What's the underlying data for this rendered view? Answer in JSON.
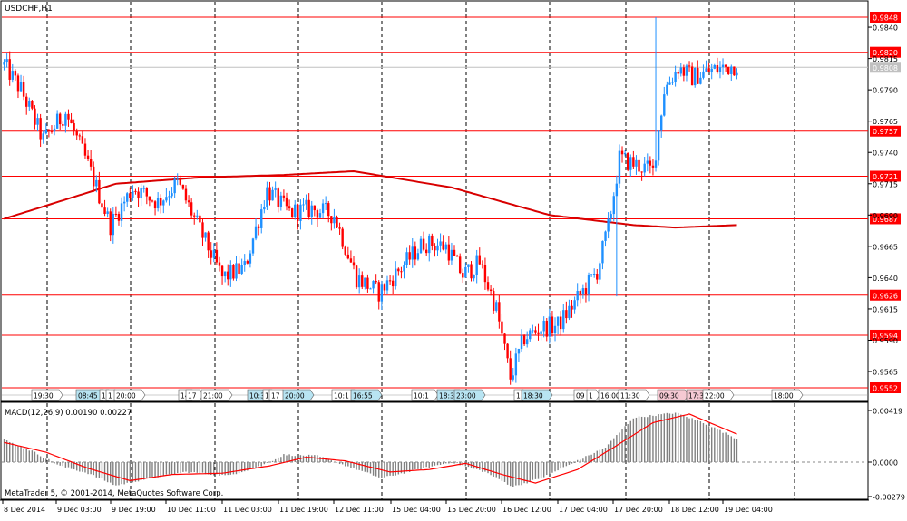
{
  "window": {
    "symbol_title": "USDCHF,H1",
    "copyright": "MetaTrader 5, © 2001-2014, MetaQuotes Software Corp."
  },
  "main_axis": {
    "ticks": [
      "0.9840",
      "0.9815",
      "0.9790",
      "0.9765",
      "0.9740",
      "0.9715",
      "0.9690",
      "0.9665",
      "0.9640",
      "0.9615",
      "0.9590",
      "0.9565"
    ],
    "current_price": "0.9808"
  },
  "levels": [
    {
      "label": "0.9848"
    },
    {
      "label": "0.9820"
    },
    {
      "label": "0.9757"
    },
    {
      "label": "0.9721"
    },
    {
      "label": "0.9687"
    },
    {
      "label": "0.9626"
    },
    {
      "label": "0.9594"
    },
    {
      "label": "0.9552"
    }
  ],
  "events_bar": {
    "time_labels": [
      {
        "text": "19:30",
        "style": "plain"
      },
      {
        "text": "08:45",
        "style": "blue"
      },
      {
        "text": "1",
        "style": "plain"
      },
      {
        "text": "1",
        "style": "plain"
      },
      {
        "text": "20:00",
        "style": "plain"
      },
      {
        "text": "14",
        "style": "plain"
      },
      {
        "text": "17",
        "style": "plain"
      },
      {
        "text": "21:00",
        "style": "plain"
      },
      {
        "text": "10:3",
        "style": "blue"
      },
      {
        "text": "1",
        "style": "plain"
      },
      {
        "text": "17",
        "style": "plain"
      },
      {
        "text": "20:00",
        "style": "blue"
      },
      {
        "text": "10:1",
        "style": "plain"
      },
      {
        "text": "16:55",
        "style": "blue"
      },
      {
        "text": "10:1",
        "style": "plain"
      },
      {
        "text": "18:3",
        "style": "blue"
      },
      {
        "text": "23:00",
        "style": "blue"
      },
      {
        "text": "1",
        "style": "plain"
      },
      {
        "text": "18:30",
        "style": "blue"
      },
      {
        "text": "09",
        "style": "plain"
      },
      {
        "text": "1",
        "style": "plain"
      },
      {
        "text": "16:00",
        "style": "plain"
      },
      {
        "text": "11:30",
        "style": "plain"
      },
      {
        "text": "09:30",
        "style": "pink"
      },
      {
        "text": "17:3",
        "style": "pink"
      },
      {
        "text": "22:00",
        "style": "plain"
      },
      {
        "text": "18:00",
        "style": "plain"
      }
    ]
  },
  "macd": {
    "label": "MACD(12,26,9) 0.00190 0.00227",
    "ticks": [
      "0.00419",
      "0.0000",
      "-0.00279"
    ]
  },
  "time_axis": {
    "labels": [
      "8 Dec 2014",
      "9 Dec 03:00",
      "9 Dec 19:00",
      "10 Dec 11:00",
      "11 Dec 03:00",
      "11 Dec 19:00",
      "12 Dec 11:00",
      "15 Dec 04:00",
      "15 Dec 20:00",
      "16 Dec 12:00",
      "17 Dec 04:00",
      "17 Dec 20:00",
      "18 Dec 12:00",
      "19 Dec 04:00"
    ]
  },
  "colors": {
    "bull": "#1e90ff",
    "bear": "#ff0000",
    "level_line": "#ff0000",
    "ma_line": "#d80000",
    "macd_hist": "#808080",
    "macd_signal": "#ff0000",
    "grid": "#000000",
    "current_price_line": "#c0c0c0"
  },
  "chart_data": {
    "type": "candlestick",
    "title": "USDCHF,H1",
    "ylim": [
      0.9545,
      0.9862
    ],
    "key_points": [
      {
        "i": 0,
        "p": 0.981
      },
      {
        "i": 6,
        "p": 0.979
      },
      {
        "i": 14,
        "p": 0.975
      },
      {
        "i": 22,
        "p": 0.9772
      },
      {
        "i": 30,
        "p": 0.973
      },
      {
        "i": 38,
        "p": 0.9682
      },
      {
        "i": 46,
        "p": 0.9712
      },
      {
        "i": 55,
        "p": 0.97
      },
      {
        "i": 62,
        "p": 0.9716
      },
      {
        "i": 70,
        "p": 0.9678
      },
      {
        "i": 78,
        "p": 0.964
      },
      {
        "i": 86,
        "p": 0.9648
      },
      {
        "i": 94,
        "p": 0.971
      },
      {
        "i": 102,
        "p": 0.9692
      },
      {
        "i": 110,
        "p": 0.9695
      },
      {
        "i": 118,
        "p": 0.969
      },
      {
        "i": 126,
        "p": 0.964
      },
      {
        "i": 134,
        "p": 0.9628
      },
      {
        "i": 142,
        "p": 0.9648
      },
      {
        "i": 150,
        "p": 0.9668
      },
      {
        "i": 158,
        "p": 0.9665
      },
      {
        "i": 164,
        "p": 0.9642
      },
      {
        "i": 170,
        "p": 0.9652
      },
      {
        "i": 176,
        "p": 0.9615
      },
      {
        "i": 181,
        "p": 0.956
      },
      {
        "i": 186,
        "p": 0.9592
      },
      {
        "i": 192,
        "p": 0.96
      },
      {
        "i": 198,
        "p": 0.9602
      },
      {
        "i": 204,
        "p": 0.962
      },
      {
        "i": 212,
        "p": 0.9645
      },
      {
        "i": 216,
        "p": 0.968
      },
      {
        "i": 220,
        "p": 0.9735
      },
      {
        "i": 226,
        "p": 0.973
      },
      {
        "i": 232,
        "p": 0.9725
      },
      {
        "i": 236,
        "p": 0.979
      },
      {
        "i": 241,
        "p": 0.9808
      },
      {
        "i": 246,
        "p": 0.98
      },
      {
        "i": 252,
        "p": 0.9805
      },
      {
        "i": 258,
        "p": 0.9808
      },
      {
        "i": 262,
        "p": 0.981
      }
    ],
    "spikes": [
      {
        "i": 219,
        "low": 0.9625
      },
      {
        "i": 233,
        "high": 0.9848
      }
    ],
    "moving_average": [
      {
        "i": 0,
        "p": 0.9687
      },
      {
        "i": 40,
        "p": 0.9715
      },
      {
        "i": 70,
        "p": 0.972
      },
      {
        "i": 100,
        "p": 0.9722
      },
      {
        "i": 125,
        "p": 0.9725
      },
      {
        "i": 160,
        "p": 0.9712
      },
      {
        "i": 195,
        "p": 0.969
      },
      {
        "i": 225,
        "p": 0.9682
      },
      {
        "i": 240,
        "p": 0.968
      },
      {
        "i": 262,
        "p": 0.9682
      }
    ],
    "macd_hist_points": [
      {
        "i": 0,
        "v": 0.0018
      },
      {
        "i": 10,
        "v": 0.0009
      },
      {
        "i": 20,
        "v": -0.0003
      },
      {
        "i": 30,
        "v": -0.0009
      },
      {
        "i": 40,
        "v": -0.0019
      },
      {
        "i": 52,
        "v": -0.0013
      },
      {
        "i": 65,
        "v": -0.0008
      },
      {
        "i": 80,
        "v": -0.0011
      },
      {
        "i": 92,
        "v": -0.0003
      },
      {
        "i": 100,
        "v": 0.0006
      },
      {
        "i": 112,
        "v": 0.0005
      },
      {
        "i": 125,
        "v": -0.0005
      },
      {
        "i": 135,
        "v": -0.0013
      },
      {
        "i": 148,
        "v": -0.0006
      },
      {
        "i": 160,
        "v": 0.0
      },
      {
        "i": 172,
        "v": -0.0008
      },
      {
        "i": 182,
        "v": -0.002
      },
      {
        "i": 192,
        "v": -0.0013
      },
      {
        "i": 205,
        "v": 0.0001
      },
      {
        "i": 215,
        "v": 0.0012
      },
      {
        "i": 225,
        "v": 0.0036
      },
      {
        "i": 240,
        "v": 0.004
      },
      {
        "i": 250,
        "v": 0.0032
      },
      {
        "i": 262,
        "v": 0.0019
      }
    ],
    "macd_signal_points": [
      {
        "i": 0,
        "v": 0.0016
      },
      {
        "i": 15,
        "v": 0.0008
      },
      {
        "i": 30,
        "v": -0.0005
      },
      {
        "i": 45,
        "v": -0.0015
      },
      {
        "i": 60,
        "v": -0.001
      },
      {
        "i": 78,
        "v": -0.0009
      },
      {
        "i": 95,
        "v": -0.0003
      },
      {
        "i": 108,
        "v": 0.0004
      },
      {
        "i": 122,
        "v": 0.0001
      },
      {
        "i": 138,
        "v": -0.0008
      },
      {
        "i": 152,
        "v": -0.0006
      },
      {
        "i": 165,
        "v": -0.0001
      },
      {
        "i": 178,
        "v": -0.001
      },
      {
        "i": 190,
        "v": -0.0017
      },
      {
        "i": 205,
        "v": -0.0006
      },
      {
        "i": 218,
        "v": 0.0012
      },
      {
        "i": 232,
        "v": 0.0032
      },
      {
        "i": 245,
        "v": 0.0039
      },
      {
        "i": 262,
        "v": 0.00227
      }
    ]
  }
}
